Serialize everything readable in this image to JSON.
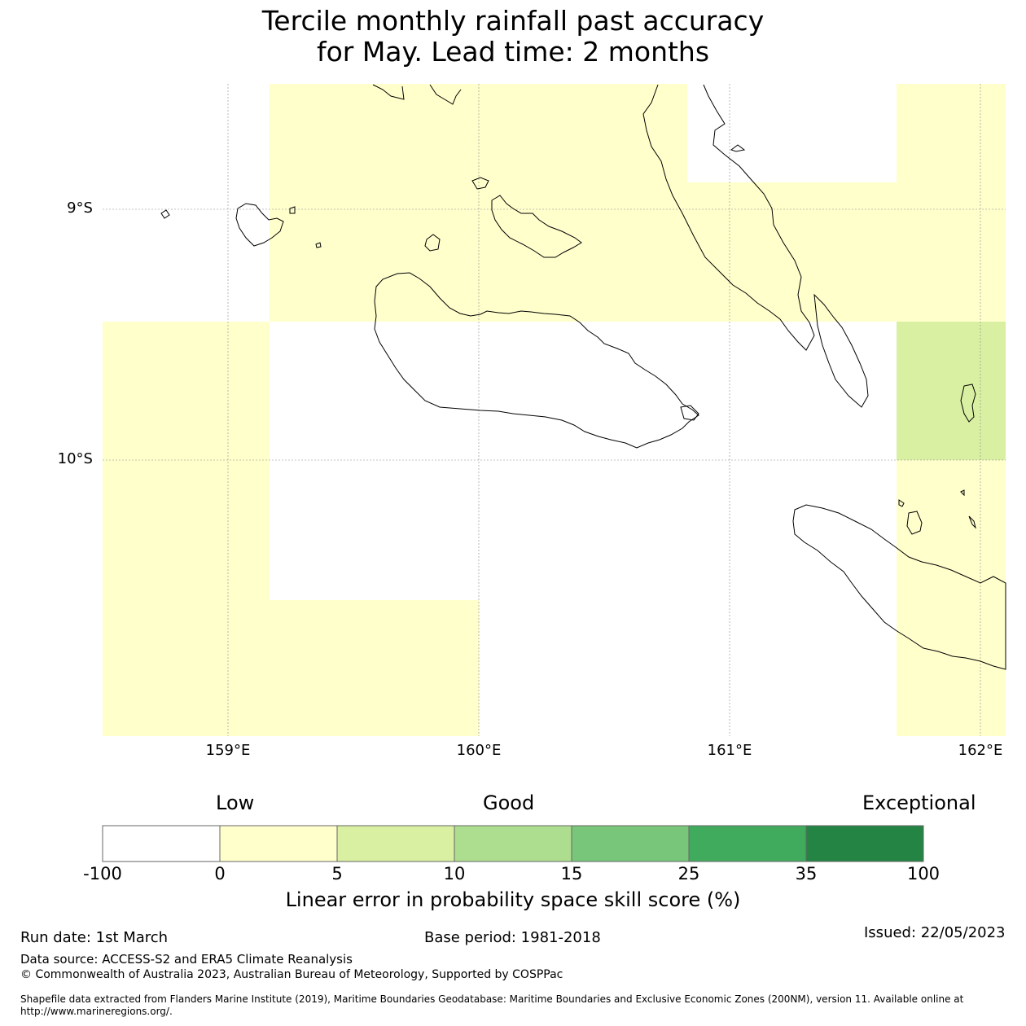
{
  "title": {
    "line1": "Tercile monthly rainfall past accuracy",
    "line2": "for May. Lead time: 2 months"
  },
  "map": {
    "lat_ticks": [
      "9°S",
      "10°S"
    ],
    "lon_ticks": [
      "159°E",
      "160°E",
      "161°E",
      "162°E"
    ],
    "lon_range": [
      158.5,
      162.1
    ],
    "lat_range": [
      -8.5,
      -11.1
    ],
    "skill_cells": [
      {
        "lon": [
          159.17,
          160.83
        ],
        "lat": [
          -8.5,
          -9.45
        ],
        "category": "0-5"
      },
      {
        "lon": [
          160.83,
          161.67
        ],
        "lat": [
          -8.89,
          -9.45
        ],
        "category": "0-5"
      },
      {
        "lon": [
          161.67,
          162.1
        ],
        "lat": [
          -8.5,
          -9.45
        ],
        "category": "0-5"
      },
      {
        "lon": [
          158.5,
          159.17
        ],
        "lat": [
          -9.45,
          -11.1
        ],
        "category": "0-5"
      },
      {
        "lon": [
          159.17,
          160.0
        ],
        "lat": [
          -10.56,
          -11.1
        ],
        "category": "0-5"
      },
      {
        "lon": [
          161.67,
          162.1
        ],
        "lat": [
          -9.45,
          -10.0
        ],
        "category": "5-10"
      },
      {
        "lon": [
          161.67,
          162.1
        ],
        "lat": [
          -10.0,
          -11.1
        ],
        "category": "0-5"
      }
    ]
  },
  "colorbar": {
    "categories": [
      "Low",
      "Good",
      "Exceptional"
    ],
    "ticks": [
      "-100",
      "0",
      "5",
      "10",
      "15",
      "25",
      "35",
      "100"
    ],
    "colors": [
      "#ffffff",
      "#ffffcc",
      "#d9f0a3",
      "#addd8e",
      "#78c679",
      "#41ab5d",
      "#238443"
    ],
    "label": "Linear error in probability space skill score (%)"
  },
  "footer": {
    "run_date": "Run date: 1st March",
    "base_period": "Base period: 1981-2018",
    "issued": "Issued: 22/05/2023",
    "data_source": "Data source: ACCESS-S2 and ERA5 Climate Reanalysis",
    "copyright": "© Commonwealth of Australia 2023, Australian Bureau of Meteorology, Supported by COSPPac",
    "shapefile": "Shapefile data extracted from Flanders Marine Institute (2019), Maritime Boundaries Geodatabase: Maritime Boundaries and Exclusive Economic Zones (200NM), version 11. Available online at http://www.marineregions.org/."
  }
}
